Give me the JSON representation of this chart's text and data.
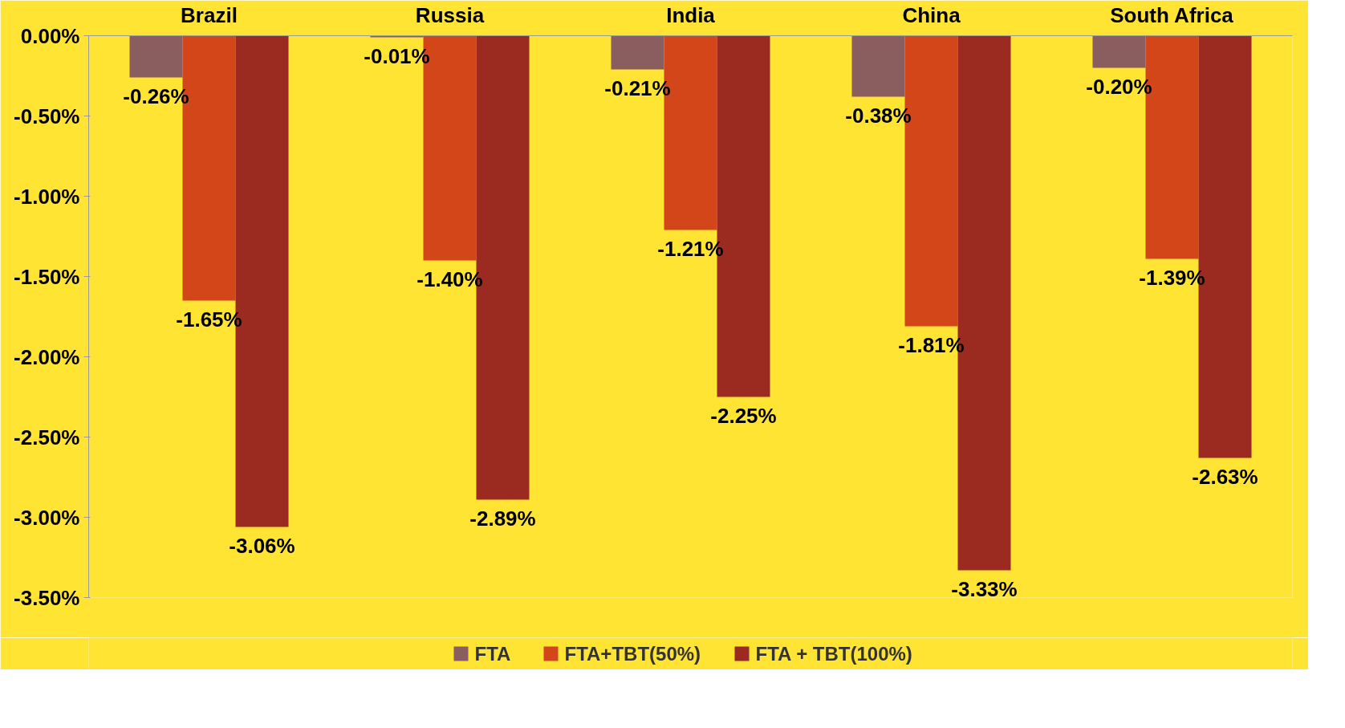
{
  "chart_data": {
    "type": "bar",
    "categories": [
      "Brazil",
      "Russia",
      "India",
      "China",
      "South Africa"
    ],
    "series": [
      {
        "name": "FTA",
        "color": "#8a5e5e",
        "values": [
          -0.26,
          -0.01,
          -0.21,
          -0.38,
          -0.2
        ],
        "value_labels": [
          "-0.26%",
          "-0.01%",
          "-0.21%",
          "-0.38%",
          "-0.20%"
        ]
      },
      {
        "name": "FTA+TBT(50%)",
        "color": "#d2461a",
        "values": [
          -1.65,
          -1.4,
          -1.21,
          -1.81,
          -1.39
        ],
        "value_labels": [
          "-1.65%",
          "-1.40%",
          "-1.21%",
          "-1.81%",
          "-1.39%"
        ]
      },
      {
        "name": "FTA + TBT(100%)",
        "color": "#9b2a20",
        "values": [
          -3.06,
          -2.89,
          -2.25,
          -3.33,
          -2.63
        ],
        "value_labels": [
          "-3.06%",
          "-2.89%",
          "-2.25%",
          "-3.33%",
          "-2.63%"
        ]
      }
    ],
    "ylim": [
      -3.5,
      0
    ],
    "yticks": [
      {
        "value": 0,
        "label": "0.00%"
      },
      {
        "value": -0.5,
        "label": "-0.50%"
      },
      {
        "value": -1,
        "label": "-1.00%"
      },
      {
        "value": -1.5,
        "label": "-1.50%"
      },
      {
        "value": -2,
        "label": "-2.00%"
      },
      {
        "value": -2.5,
        "label": "-2.50%"
      },
      {
        "value": -3,
        "label": "-3.00%"
      },
      {
        "value": -3.5,
        "label": "-3.50%"
      }
    ],
    "grid": false,
    "legend": "bottom"
  }
}
